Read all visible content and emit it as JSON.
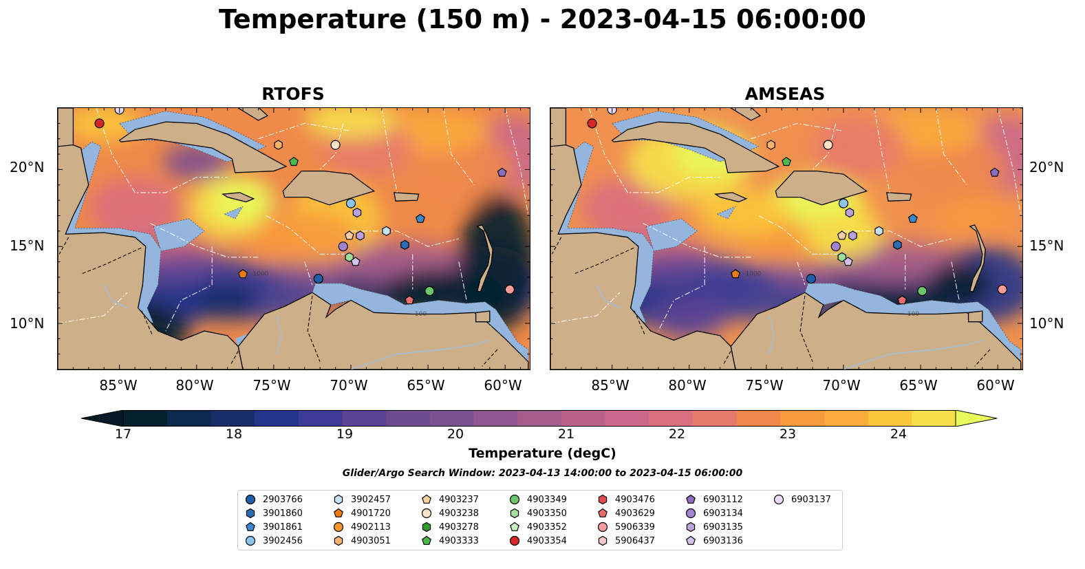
{
  "title": "Temperature (150 m) - 2023-04-15 06:00:00",
  "panels": [
    {
      "title": "RTOFS"
    },
    {
      "title": "AMSEAS"
    }
  ],
  "lon_ticks": [
    "85°W",
    "80°W",
    "75°W",
    "70°W",
    "65°W",
    "60°W"
  ],
  "lat_ticks": [
    "20°N",
    "15°N",
    "10°N"
  ],
  "contour_labels": [
    "-1000",
    "-100"
  ],
  "colorbar": {
    "label": "Temperature (degC)",
    "ticks": [
      "17",
      "18",
      "19",
      "20",
      "21",
      "22",
      "23",
      "24"
    ],
    "colors": [
      "#04202f",
      "#0a2a4f",
      "#172e6b",
      "#23358a",
      "#3c3b95",
      "#5a4395",
      "#6b4a8f",
      "#7d5090",
      "#91568f",
      "#a55d8c",
      "#b8628a",
      "#c9688a",
      "#d96f7f",
      "#e77a6b",
      "#f0884e",
      "#f7993f",
      "#fbab3b",
      "#fbc63c",
      "#f6e04a"
    ],
    "extend_low": "#031a24",
    "extend_high": "#e8fa5b"
  },
  "search_window": "Glider/Argo Search Window: 2023-04-13 14:00:00 to 2023-04-15 06:00:00",
  "colors": {
    "land": "#cdb08a",
    "shelf": "#94b5de"
  },
  "legend": [
    {
      "id": "2903766",
      "marker": "circle",
      "color": "#1f5fa8"
    },
    {
      "id": "3901860",
      "marker": "hexagon",
      "color": "#2a6db5"
    },
    {
      "id": "3901861",
      "marker": "pentagon",
      "color": "#3c88cc"
    },
    {
      "id": "3902456",
      "marker": "circle",
      "color": "#8cc3ea"
    },
    {
      "id": "3902457",
      "marker": "hexagon",
      "color": "#c6e2f5"
    },
    {
      "id": "4901720",
      "marker": "pentagon",
      "color": "#ef7c11"
    },
    {
      "id": "4902113",
      "marker": "circle",
      "color": "#f5952b"
    },
    {
      "id": "4903051",
      "marker": "hexagon",
      "color": "#f9b46c"
    },
    {
      "id": "4903237",
      "marker": "pentagon",
      "color": "#fbcfa0"
    },
    {
      "id": "4903238",
      "marker": "circle",
      "color": "#fde3c8"
    },
    {
      "id": "4903278",
      "marker": "hexagon",
      "color": "#2c9a2c"
    },
    {
      "id": "4903333",
      "marker": "pentagon",
      "color": "#4cb84c"
    },
    {
      "id": "4903349",
      "marker": "circle",
      "color": "#6cc76c"
    },
    {
      "id": "4903350",
      "marker": "hexagon",
      "color": "#9fdf96"
    },
    {
      "id": "4903352",
      "marker": "pentagon",
      "color": "#c8efc0"
    },
    {
      "id": "4903354",
      "marker": "circle",
      "color": "#d62728"
    },
    {
      "id": "4903476",
      "marker": "hexagon",
      "color": "#e04b4b"
    },
    {
      "id": "4903629",
      "marker": "pentagon",
      "color": "#ec6b6b"
    },
    {
      "id": "5906339",
      "marker": "circle",
      "color": "#f39a9a"
    },
    {
      "id": "5906437",
      "marker": "hexagon",
      "color": "#f8c4c4"
    },
    {
      "id": "6903112",
      "marker": "pentagon",
      "color": "#8e6cc0"
    },
    {
      "id": "6903134",
      "marker": "circle",
      "color": "#a283d0"
    },
    {
      "id": "6903135",
      "marker": "hexagon",
      "color": "#bba2df"
    },
    {
      "id": "6903136",
      "marker": "pentagon",
      "color": "#d3c2ec"
    },
    {
      "id": "6903137",
      "marker": "circle",
      "color": "#ead9f7"
    }
  ]
}
